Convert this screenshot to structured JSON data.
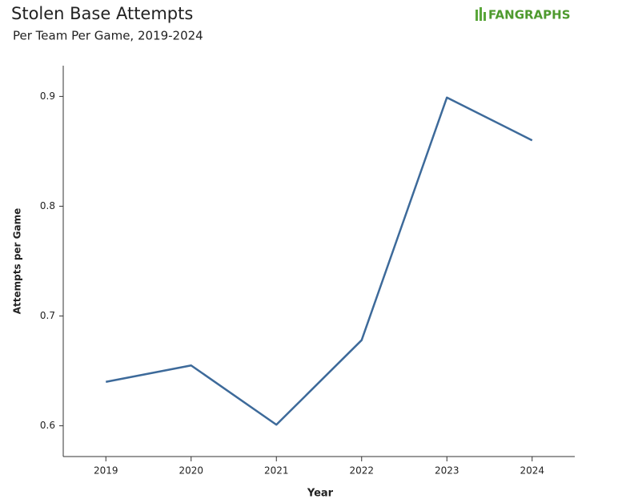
{
  "chart_data": {
    "type": "line",
    "title": "Stolen Base Attempts",
    "subtitle": "Per Team Per Game, 2019-2024",
    "logo": "FANGRAPHS",
    "x_label": "Year",
    "y_label": "Attempts per Game",
    "x": [
      2019,
      2020,
      2021,
      2022,
      2023,
      2024
    ],
    "series": [
      {
        "name": "Attempts per Game",
        "color": "#3d6a9a",
        "values": [
          0.64,
          0.655,
          0.601,
          0.678,
          0.899,
          0.86
        ]
      }
    ],
    "xlim": [
      2018.5,
      2024.5
    ],
    "xticks": [
      2019,
      2020,
      2021,
      2022,
      2023,
      2024
    ],
    "ylim": [
      0.572,
      0.928
    ],
    "yticks": [
      0.6,
      0.7,
      0.8,
      0.9
    ],
    "grid": false
  }
}
